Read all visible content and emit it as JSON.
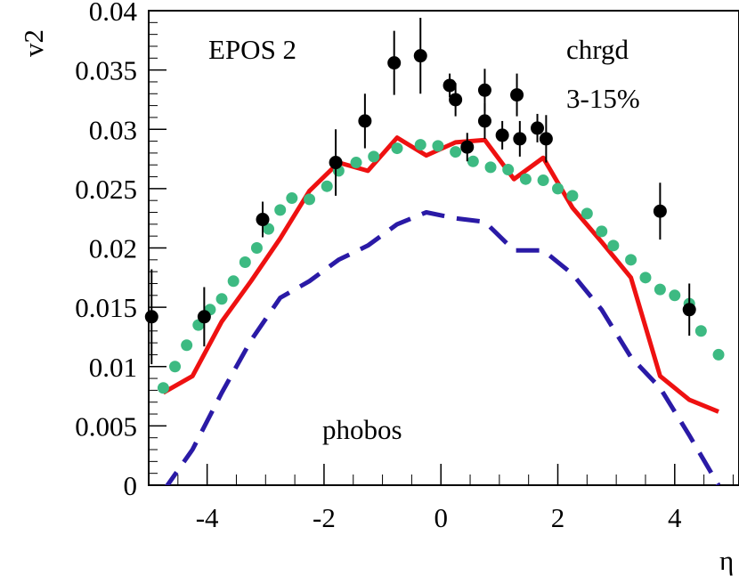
{
  "chart_data": {
    "type": "line",
    "title": "",
    "xlabel": "η",
    "ylabel": "v2",
    "xlim": [
      -5.0,
      5.1
    ],
    "ylim": [
      0,
      0.04
    ],
    "grid": false,
    "x_ticks": [
      -4,
      -2,
      0,
      2,
      4
    ],
    "x_tick_labels": [
      "-4",
      "-2",
      "0",
      "2",
      "4"
    ],
    "y_ticks": [
      0,
      0.005,
      0.01,
      0.015,
      0.02,
      0.025,
      0.03,
      0.035,
      0.04
    ],
    "y_tick_labels": [
      "0",
      "0.005",
      "0.01",
      "0.015",
      "0.02",
      "0.025",
      "0.03",
      "0.035",
      "0.04"
    ],
    "annotations": [
      "EPOS 2",
      "chrgd",
      "3-15%",
      "phobos"
    ],
    "series": [
      {
        "style": "solid",
        "color": "#ee1111",
        "x": [
          -4.75,
          -4.25,
          -3.75,
          -3.25,
          -2.75,
          -2.25,
          -1.75,
          -1.25,
          -0.75,
          -0.25,
          0.25,
          0.75,
          1.25,
          1.75,
          2.25,
          2.75,
          3.25,
          3.75,
          4.25,
          4.75
        ],
        "y": [
          0.0078,
          0.0092,
          0.0138,
          0.0172,
          0.0208,
          0.0248,
          0.0272,
          0.0265,
          0.0293,
          0.0278,
          0.0289,
          0.0291,
          0.0258,
          0.0276,
          0.0234,
          0.0205,
          0.0175,
          0.0092,
          0.0072,
          0.0062
        ]
      },
      {
        "style": "dashed",
        "color": "#2a1aa6",
        "x": [
          -4.75,
          -4.25,
          -3.75,
          -3.25,
          -2.75,
          -2.25,
          -1.75,
          -1.25,
          -0.75,
          -0.25,
          0.25,
          0.75,
          1.25,
          1.75,
          2.25,
          2.75,
          3.25,
          3.75,
          4.25,
          4.75
        ],
        "y": [
          -0.0005,
          0.003,
          0.0078,
          0.0122,
          0.0158,
          0.0172,
          0.019,
          0.0202,
          0.022,
          0.023,
          0.0225,
          0.0222,
          0.0198,
          0.0198,
          0.0178,
          0.0148,
          0.0108,
          0.0082,
          0.0042,
          0.0
        ]
      },
      {
        "style": "dotted",
        "color": "#3dba82",
        "x": [
          -4.75,
          -4.55,
          -4.35,
          -4.15,
          -3.95,
          -3.75,
          -3.55,
          -3.35,
          -3.15,
          -2.95,
          -2.75,
          -2.55,
          -2.25,
          -1.95,
          -1.75,
          -1.45,
          -1.15,
          -0.75,
          -0.35,
          -0.05,
          0.25,
          0.55,
          0.85,
          1.15,
          1.45,
          1.75,
          2.0,
          2.25,
          2.5,
          2.75,
          2.95,
          3.25,
          3.5,
          3.75,
          4.0,
          4.25,
          4.45,
          4.75
        ],
        "y": [
          0.0082,
          0.01,
          0.0118,
          0.0135,
          0.0148,
          0.0157,
          0.0172,
          0.0188,
          0.02,
          0.0216,
          0.0232,
          0.0242,
          0.0241,
          0.0252,
          0.0265,
          0.0272,
          0.0277,
          0.0284,
          0.0287,
          0.0286,
          0.0281,
          0.0273,
          0.0268,
          0.0266,
          0.0258,
          0.0257,
          0.025,
          0.0244,
          0.0229,
          0.0214,
          0.0202,
          0.019,
          0.0175,
          0.0165,
          0.016,
          0.0153,
          0.013,
          0.011
        ]
      },
      {
        "name": "phobos",
        "style": "points",
        "color": "#000000",
        "x": [
          -4.95,
          -4.05,
          -3.05,
          -1.8,
          -1.3,
          -0.8,
          -0.35,
          0.15,
          0.25,
          0.45,
          0.75,
          0.75,
          1.05,
          1.3,
          1.35,
          1.65,
          1.8,
          3.75,
          4.25
        ],
        "y": [
          0.0142,
          0.0142,
          0.0224,
          0.0272,
          0.0307,
          0.0356,
          0.0362,
          0.0337,
          0.0325,
          0.0285,
          0.0333,
          0.0307,
          0.0295,
          0.0329,
          0.0292,
          0.0301,
          0.0292,
          0.0231,
          0.0148
        ],
        "err": [
          0.004,
          0.0025,
          0.0015,
          0.0028,
          0.0023,
          0.0027,
          0.0032,
          0.001,
          0.0014,
          0.0012,
          0.0018,
          0.0015,
          0.0012,
          0.0018,
          0.0015,
          0.0012,
          0.002,
          0.0024,
          0.0022
        ]
      }
    ]
  }
}
